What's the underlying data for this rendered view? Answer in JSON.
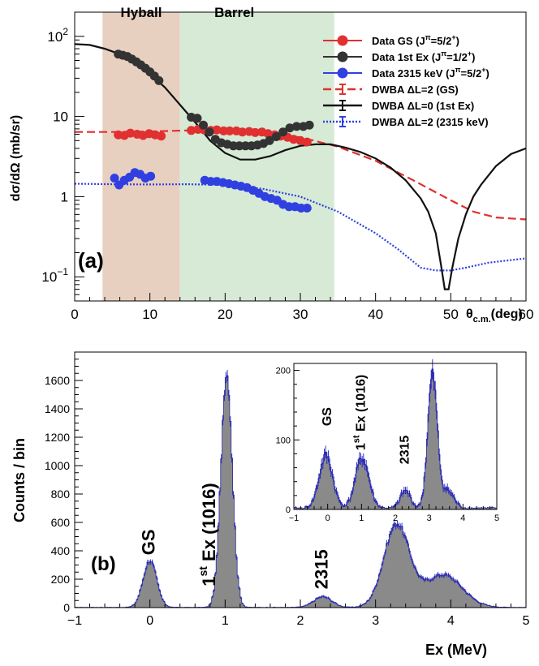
{
  "panel_a": {
    "chart_data": {
      "type": "scatter",
      "xlabel": "θc.m.(deg)",
      "xlabel_main": "θ",
      "xlabel_sub": "c.m.",
      "xlabel_unit": "(deg)",
      "ylabel": "dσ/dΩ (mb/sr)",
      "xlim": [
        0,
        60
      ],
      "ylim": [
        0.05,
        200
      ],
      "yscale": "log",
      "xticks": [
        "0",
        "10",
        "20",
        "30",
        "40",
        "50",
        "60"
      ],
      "yticks": [
        {
          "label": "1",
          "v": 1
        },
        {
          "label": "10",
          "v": 10
        }
      ],
      "yticks_pow": [
        {
          "base": "10",
          "exp": "2",
          "v": 100
        },
        {
          "base": "10",
          "exp": "−1",
          "v": 0.1
        }
      ],
      "regions": [
        {
          "label": "Hyball",
          "x0": 3.7,
          "x1": 14,
          "color": "#e8d0c0"
        },
        {
          "label": "Barrel",
          "x0": 14,
          "x1": 34.5,
          "color": "#d6ead6"
        }
      ],
      "series": [
        {
          "name": "Data GS (J",
          "name_sup": "π",
          "name_tail": "=5/2",
          "name_sup2": "+",
          "name_close": ")",
          "color": "#e03030",
          "kind": "points",
          "points": [
            [
              5.8,
              5.9
            ],
            [
              6.6,
              5.8
            ],
            [
              7.4,
              6.2
            ],
            [
              8.3,
              6.0
            ],
            [
              9.1,
              5.8
            ],
            [
              9.9,
              6.1
            ],
            [
              10.7,
              5.9
            ],
            [
              11.5,
              5.7
            ],
            [
              15.5,
              6.7
            ],
            [
              16.4,
              6.9
            ],
            [
              17.2,
              6.8
            ],
            [
              18.1,
              6.7
            ],
            [
              18.9,
              6.8
            ],
            [
              19.8,
              6.6
            ],
            [
              20.6,
              6.6
            ],
            [
              21.5,
              6.6
            ],
            [
              22.3,
              6.4
            ],
            [
              23.2,
              6.5
            ],
            [
              24.0,
              6.3
            ],
            [
              24.9,
              6.4
            ],
            [
              25.7,
              6.1
            ],
            [
              26.6,
              5.9
            ],
            [
              27.4,
              5.7
            ],
            [
              28.3,
              5.5
            ],
            [
              29.1,
              5.2
            ],
            [
              30.0,
              5.0
            ],
            [
              30.9,
              4.8
            ]
          ]
        },
        {
          "name": "Data 1st Ex (J",
          "name_sup": "π",
          "name_tail": "=1/2",
          "name_sup2": "+",
          "name_close": ")",
          "color": "#333333",
          "kind": "points",
          "points": [
            [
              5.8,
              60
            ],
            [
              6.4,
              58
            ],
            [
              7.0,
              56
            ],
            [
              7.6,
              52
            ],
            [
              8.2,
              48
            ],
            [
              8.8,
              44
            ],
            [
              9.4,
              40
            ],
            [
              10.0,
              36
            ],
            [
              10.6,
              32
            ],
            [
              11.2,
              28
            ],
            [
              15.5,
              9.8
            ],
            [
              16.3,
              9.5
            ],
            [
              17.1,
              7.8
            ],
            [
              17.9,
              6.4
            ],
            [
              18.7,
              5.2
            ],
            [
              19.5,
              4.7
            ],
            [
              20.3,
              4.5
            ],
            [
              21.1,
              4.3
            ],
            [
              21.9,
              4.3
            ],
            [
              22.7,
              4.3
            ],
            [
              23.5,
              4.3
            ],
            [
              24.3,
              4.4
            ],
            [
              25.1,
              4.6
            ],
            [
              25.9,
              5.0
            ],
            [
              26.8,
              5.6
            ],
            [
              27.7,
              6.4
            ],
            [
              28.6,
              7.2
            ],
            [
              29.5,
              7.5
            ],
            [
              30.4,
              7.5
            ],
            [
              31.2,
              7.8
            ]
          ]
        },
        {
          "name": "Data 2315 keV (J",
          "name_sup": "π",
          "name_tail": "=5/2",
          "name_sup2": "+",
          "name_close": ")",
          "color": "#3040e0",
          "kind": "points",
          "points": [
            [
              5.3,
              1.7
            ],
            [
              5.9,
              1.4
            ],
            [
              6.6,
              1.6
            ],
            [
              7.3,
              1.75
            ],
            [
              8.0,
              2.0
            ],
            [
              8.7,
              1.9
            ],
            [
              9.4,
              1.7
            ],
            [
              10.1,
              1.8
            ],
            [
              17.3,
              1.6
            ],
            [
              18.1,
              1.55
            ],
            [
              18.9,
              1.55
            ],
            [
              19.7,
              1.5
            ],
            [
              20.5,
              1.45
            ],
            [
              21.3,
              1.4
            ],
            [
              22.1,
              1.35
            ],
            [
              22.9,
              1.3
            ],
            [
              23.7,
              1.2
            ],
            [
              24.5,
              1.1
            ],
            [
              25.3,
              1.0
            ],
            [
              26.1,
              0.95
            ],
            [
              26.9,
              0.9
            ],
            [
              27.7,
              0.8
            ],
            [
              28.5,
              0.75
            ],
            [
              29.3,
              0.75
            ],
            [
              30.1,
              0.72
            ],
            [
              30.9,
              0.72
            ]
          ]
        },
        {
          "name": "DWBA ΔL=2 (GS)",
          "color": "#e03030",
          "kind": "curve",
          "dash": "10,5",
          "points": [
            [
              0,
              6.4
            ],
            [
              5,
              6.4
            ],
            [
              10,
              6.5
            ],
            [
              15,
              6.7
            ],
            [
              20,
              6.6
            ],
            [
              25,
              6.2
            ],
            [
              30,
              5.5
            ],
            [
              35,
              4.2
            ],
            [
              40,
              2.8
            ],
            [
              45,
              1.6
            ],
            [
              50,
              0.9
            ],
            [
              53,
              0.65
            ],
            [
              56,
              0.55
            ],
            [
              60,
              0.52
            ]
          ]
        },
        {
          "name": "DWBA ΔL=0 (1st Ex)",
          "color": "#111111",
          "kind": "curve",
          "dash": "",
          "points": [
            [
              0,
              80
            ],
            [
              2,
              78
            ],
            [
              4,
              70
            ],
            [
              6,
              60
            ],
            [
              8,
              48
            ],
            [
              10,
              34
            ],
            [
              12,
              23
            ],
            [
              14,
              14
            ],
            [
              16,
              8.5
            ],
            [
              18,
              5
            ],
            [
              20,
              3.5
            ],
            [
              22,
              2.9
            ],
            [
              24,
              2.9
            ],
            [
              26,
              3.2
            ],
            [
              28,
              3.8
            ],
            [
              30,
              4.3
            ],
            [
              32,
              4.5
            ],
            [
              34,
              4.5
            ],
            [
              36,
              4.1
            ],
            [
              38,
              3.6
            ],
            [
              40,
              3.0
            ],
            [
              42,
              2.3
            ],
            [
              44,
              1.6
            ],
            [
              46,
              0.95
            ],
            [
              47,
              0.65
            ],
            [
              48,
              0.35
            ],
            [
              48.7,
              0.14
            ],
            [
              49.2,
              0.07
            ],
            [
              49.7,
              0.07
            ],
            [
              50.2,
              0.13
            ],
            [
              51,
              0.3
            ],
            [
              52,
              0.6
            ],
            [
              53,
              1.0
            ],
            [
              54,
              1.4
            ],
            [
              56,
              2.4
            ],
            [
              58,
              3.4
            ],
            [
              60,
              4.0
            ]
          ]
        },
        {
          "name": "DWBA ΔL=2 (2315 keV)",
          "color": "#3040e0",
          "kind": "curve",
          "dash": "2,2",
          "points": [
            [
              0,
              1.45
            ],
            [
              5,
              1.43
            ],
            [
              10,
              1.42
            ],
            [
              15,
              1.43
            ],
            [
              20,
              1.4
            ],
            [
              25,
              1.25
            ],
            [
              30,
              1.0
            ],
            [
              35,
              0.65
            ],
            [
              40,
              0.35
            ],
            [
              43,
              0.22
            ],
            [
              46,
              0.13
            ],
            [
              48,
              0.12
            ],
            [
              50,
              0.12
            ],
            [
              52,
              0.13
            ],
            [
              55,
              0.15
            ],
            [
              60,
              0.17
            ]
          ]
        }
      ],
      "panel_label": "(a)"
    }
  },
  "panel_b": {
    "chart_data": {
      "type": "bar",
      "xlabel": "Ex (MeV)",
      "ylabel": "Counts / bin",
      "xlim": [
        -1,
        5
      ],
      "ylim": [
        0,
        1800
      ],
      "xticks": [
        "−1",
        "0",
        "1",
        "2",
        "3",
        "4",
        "5"
      ],
      "yticks": [
        "0",
        "200",
        "400",
        "600",
        "800",
        "1000",
        "1200",
        "1400",
        "1600"
      ],
      "peaks": [
        {
          "center": 0.0,
          "height": 330,
          "sigma": 0.09
        },
        {
          "center": 1.02,
          "height": 1650,
          "sigma": 0.075
        },
        {
          "center": 2.3,
          "height": 75,
          "sigma": 0.12
        },
        {
          "center": 3.28,
          "height": 580,
          "sigma": 0.17
        },
        {
          "center": 3.9,
          "height": 230,
          "sigma": 0.25
        }
      ],
      "annotations": [
        {
          "text": "GS",
          "x": 0.0,
          "y": 370
        },
        {
          "text": "1",
          "sup": "st",
          "tail": " Ex (1016)",
          "x": 0.8,
          "y": 150
        },
        {
          "text": "2315",
          "x": 2.3,
          "y": 130
        }
      ],
      "panel_label": "(b)",
      "inset": {
        "xlim": [
          -1,
          5
        ],
        "ylim": [
          0,
          210
        ],
        "xticks": [
          "−1",
          "0",
          "1",
          "2",
          "3",
          "4",
          "5"
        ],
        "yticks": [
          "0",
          "100",
          "200"
        ],
        "peaks": [
          {
            "center": -0.05,
            "height": 75,
            "sigma": 0.2
          },
          {
            "center": 1.02,
            "height": 72,
            "sigma": 0.2
          },
          {
            "center": 2.3,
            "height": 25,
            "sigma": 0.15
          },
          {
            "center": 3.1,
            "height": 190,
            "sigma": 0.14
          },
          {
            "center": 3.55,
            "height": 25,
            "sigma": 0.18
          }
        ],
        "annotations": [
          {
            "text": "GS",
            "x": 0.0,
            "y": 120
          },
          {
            "text": "1",
            "sup": "st",
            "tail": " Ex (1016)",
            "x": 1.0,
            "y": 85
          },
          {
            "text": "2315",
            "x": 2.3,
            "y": 65
          }
        ]
      }
    }
  }
}
